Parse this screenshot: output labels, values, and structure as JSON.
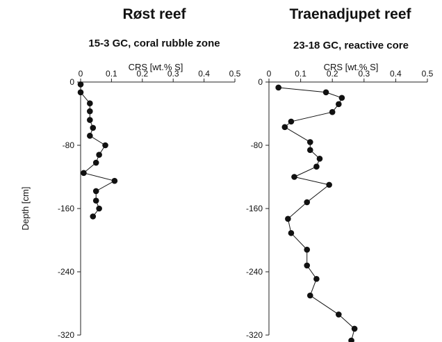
{
  "y_axis_label": "Depth [cm]",
  "chart_data": [
    {
      "type": "line",
      "title": "Røst reef",
      "subtitle": "15-3 GC, coral rubble zone",
      "xlabel": "CRS [wt.% S]",
      "ylabel": "Depth [cm]",
      "xlim": [
        0,
        0.5
      ],
      "ylim": [
        -320,
        0
      ],
      "x_ticks": [
        "0",
        "0.1",
        "0.2",
        "0.3",
        "0.4",
        "0.5"
      ],
      "y_ticks": [
        "0",
        "-80",
        "-160",
        "-240",
        "-320"
      ],
      "grid": false,
      "marker": "filled-circle",
      "series": [
        {
          "x": [
            0.0,
            0.0,
            0.03,
            0.03,
            0.03,
            0.04,
            0.03,
            0.08,
            0.06,
            0.05,
            0.01,
            0.11,
            0.05,
            0.05,
            0.06,
            0.04
          ],
          "y": [
            -3,
            -13,
            -27,
            -37,
            -48,
            -58,
            -68,
            -80,
            -92,
            -102,
            -115,
            -125,
            -138,
            -150,
            -160,
            -170
          ]
        }
      ]
    },
    {
      "type": "line",
      "title": "Traenadjupet reef",
      "subtitle": "23-18 GC, reactive core",
      "xlabel": "CRS [wt.% S]",
      "ylabel": "",
      "xlim": [
        0,
        0.5
      ],
      "ylim": [
        -320,
        0
      ],
      "x_ticks": [
        "0",
        "0.1",
        "0.2",
        "0.3",
        "0.4",
        "0.5"
      ],
      "y_ticks": [
        "0",
        "-80",
        "-160",
        "-240",
        "-320"
      ],
      "grid": false,
      "marker": "filled-circle",
      "series": [
        {
          "x": [
            0.03,
            0.18,
            0.23,
            0.22,
            0.2,
            0.07,
            0.05,
            0.13,
            0.13,
            0.16,
            0.15,
            0.08,
            0.19,
            0.12,
            0.06,
            0.07,
            0.12,
            0.12,
            0.15,
            0.13,
            0.22,
            0.27,
            0.26
          ],
          "y": [
            -7,
            -13,
            -20,
            -28,
            -38,
            -50,
            -57,
            -76,
            -86,
            -97,
            -107,
            -120,
            -130,
            -152,
            -173,
            -191,
            -212,
            -232,
            -249,
            -270,
            -294,
            -312,
            -327
          ]
        }
      ]
    }
  ]
}
